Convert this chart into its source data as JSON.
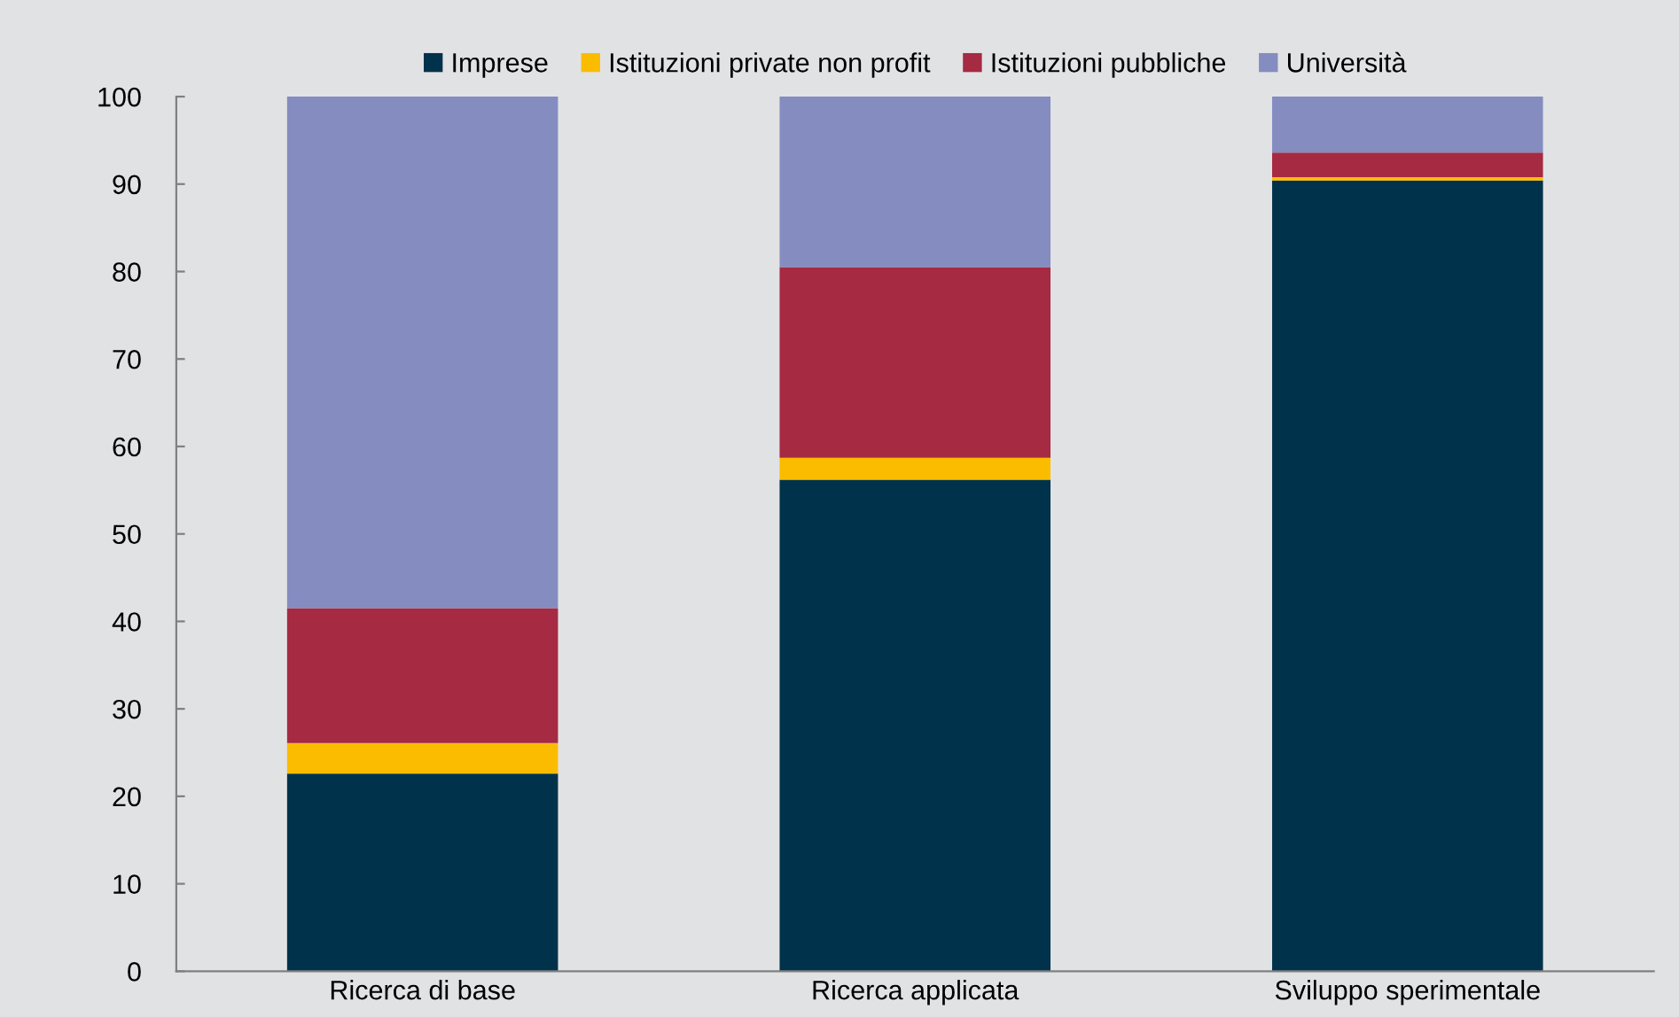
{
  "chart_data": {
    "type": "bar",
    "stacked": true,
    "categories": [
      "Ricerca di base",
      "Ricerca applicata",
      "Sviluppo sperimentale"
    ],
    "series": [
      {
        "name": "Imprese",
        "color": "#00324b",
        "values": [
          22.6,
          56.2,
          90.4
        ]
      },
      {
        "name": "Istituzioni private non profit",
        "color": "#fbbc00",
        "values": [
          3.5,
          2.5,
          0.4
        ]
      },
      {
        "name": "Istituzioni pubbliche",
        "color": "#a52a42",
        "values": [
          15.4,
          21.8,
          2.8
        ]
      },
      {
        "name": "Università",
        "color": "#858cc0",
        "values": [
          58.5,
          19.5,
          6.4
        ]
      }
    ],
    "ylim": [
      0,
      100
    ],
    "yticks": [
      0,
      10,
      20,
      30,
      40,
      50,
      60,
      70,
      80,
      90,
      100
    ],
    "grid": false,
    "legend": "top"
  }
}
